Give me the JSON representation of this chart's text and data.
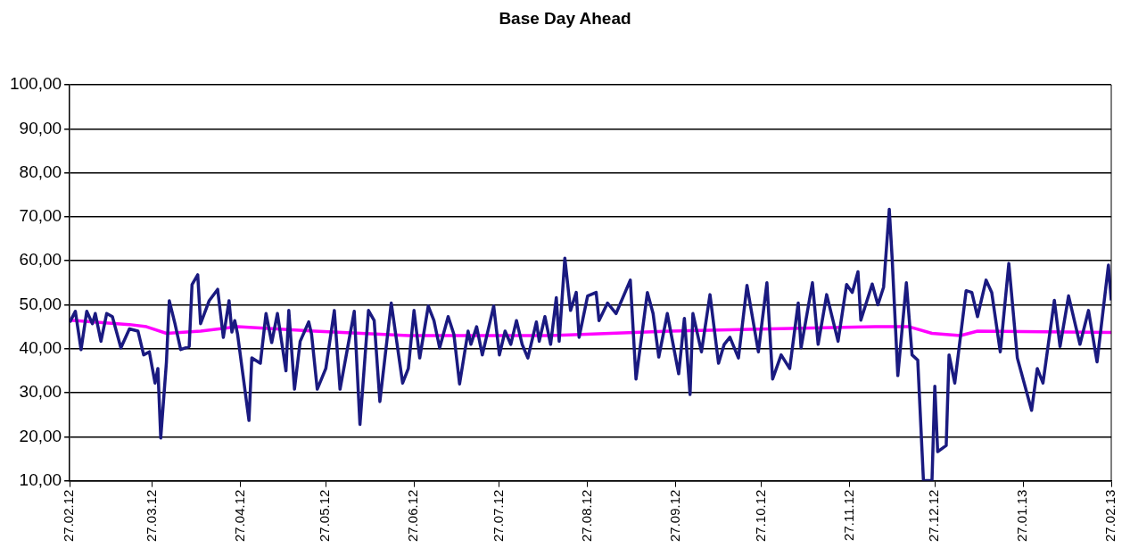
{
  "chart_data": {
    "type": "line",
    "title": "Base Day Ahead",
    "xlim": [
      "2012-02-27",
      "2013-02-27"
    ],
    "xticks": [
      {
        "value": "2012-02-27",
        "label": "27.02.12"
      },
      {
        "value": "2012-03-27",
        "label": "27.03.12"
      },
      {
        "value": "2012-04-27",
        "label": "27.04.12"
      },
      {
        "value": "2012-05-27",
        "label": "27.05.12"
      },
      {
        "value": "2012-06-27",
        "label": "27.06.12"
      },
      {
        "value": "2012-07-27",
        "label": "27.07.12"
      },
      {
        "value": "2012-08-27",
        "label": "27.08.12"
      },
      {
        "value": "2012-09-27",
        "label": "27.09.12"
      },
      {
        "value": "2012-10-27",
        "label": "27.10.12"
      },
      {
        "value": "2012-11-27",
        "label": "27.11.12"
      },
      {
        "value": "2012-12-27",
        "label": "27.12.12"
      },
      {
        "value": "2013-01-27",
        "label": "27.01.13"
      },
      {
        "value": "2013-02-27",
        "label": "27.02.13"
      }
    ],
    "ylim": [
      10,
      100
    ],
    "yticks": [
      {
        "value": 10,
        "label": "10,00"
      },
      {
        "value": 20,
        "label": "20,00"
      },
      {
        "value": 30,
        "label": "30,00"
      },
      {
        "value": 40,
        "label": "40,00"
      },
      {
        "value": 50,
        "label": "50,00"
      },
      {
        "value": 60,
        "label": "60,00"
      },
      {
        "value": 70,
        "label": "70,00"
      },
      {
        "value": 80,
        "label": "80,00"
      },
      {
        "value": 90,
        "label": "90,00"
      },
      {
        "value": 100,
        "label": "100,00"
      }
    ],
    "grid": "y",
    "legend": false,
    "line_style": "solid",
    "series": [
      {
        "color": "#1a1a80",
        "x": [
          "2012-02-27",
          "2012-02-29",
          "2012-03-02",
          "2012-03-04",
          "2012-03-06",
          "2012-03-07",
          "2012-03-09",
          "2012-03-11",
          "2012-03-13",
          "2012-03-16",
          "2012-03-19",
          "2012-03-22",
          "2012-03-24",
          "2012-03-26",
          "2012-03-28",
          "2012-03-29",
          "2012-03-30",
          "2012-04-01",
          "2012-04-02",
          "2012-04-04",
          "2012-04-06",
          "2012-04-09",
          "2012-04-10",
          "2012-04-12",
          "2012-04-13",
          "2012-04-16",
          "2012-04-19",
          "2012-04-21",
          "2012-04-23",
          "2012-04-24",
          "2012-04-25",
          "2012-04-26",
          "2012-04-30",
          "2012-05-01",
          "2012-05-04",
          "2012-05-06",
          "2012-05-08",
          "2012-05-10",
          "2012-05-13",
          "2012-05-14",
          "2012-05-16",
          "2012-05-18",
          "2012-05-21",
          "2012-05-22",
          "2012-05-24",
          "2012-05-27",
          "2012-05-30",
          "2012-06-01",
          "2012-06-06",
          "2012-06-08",
          "2012-06-11",
          "2012-06-13",
          "2012-06-15",
          "2012-06-19",
          "2012-06-23",
          "2012-06-25",
          "2012-06-27",
          "2012-06-29",
          "2012-07-02",
          "2012-07-04",
          "2012-07-06",
          "2012-07-09",
          "2012-07-11",
          "2012-07-13",
          "2012-07-16",
          "2012-07-17",
          "2012-07-19",
          "2012-07-21",
          "2012-07-25",
          "2012-07-27",
          "2012-07-29",
          "2012-07-31",
          "2012-08-02",
          "2012-08-04",
          "2012-08-06",
          "2012-08-09",
          "2012-08-10",
          "2012-08-12",
          "2012-08-14",
          "2012-08-16",
          "2012-08-17",
          "2012-08-19",
          "2012-08-21",
          "2012-08-23",
          "2012-08-24",
          "2012-08-27",
          "2012-08-30",
          "2012-08-31",
          "2012-09-03",
          "2012-09-06",
          "2012-09-11",
          "2012-09-13",
          "2012-09-17",
          "2012-09-19",
          "2012-09-21",
          "2012-09-24",
          "2012-09-28",
          "2012-09-30",
          "2012-10-02",
          "2012-10-03",
          "2012-10-06",
          "2012-10-09",
          "2012-10-12",
          "2012-10-14",
          "2012-10-16",
          "2012-10-19",
          "2012-10-22",
          "2012-10-26",
          "2012-10-29",
          "2012-10-31",
          "2012-11-03",
          "2012-11-06",
          "2012-11-09",
          "2012-11-10",
          "2012-11-14",
          "2012-11-16",
          "2012-11-19",
          "2012-11-23",
          "2012-11-26",
          "2012-11-28",
          "2012-11-30",
          "2012-12-01",
          "2012-12-05",
          "2012-12-07",
          "2012-12-09",
          "2012-12-11",
          "2012-12-12",
          "2012-12-14",
          "2012-12-17",
          "2012-12-19",
          "2012-12-21",
          "2012-12-23",
          "2012-12-24",
          "2012-12-26",
          "2012-12-27",
          "2012-12-28",
          "2012-12-31",
          "2013-01-01",
          "2013-01-03",
          "2013-01-07",
          "2013-01-09",
          "2013-01-11",
          "2013-01-14",
          "2013-01-16",
          "2013-01-19",
          "2013-01-22",
          "2013-01-25",
          "2013-01-30",
          "2013-02-01",
          "2013-02-03",
          "2013-02-07",
          "2013-02-09",
          "2013-02-12",
          "2013-02-16",
          "2013-02-19",
          "2013-02-22",
          "2013-02-26",
          "2013-02-27"
        ],
        "values": [
          46,
          48.5,
          39.8,
          48.5,
          45.7,
          48,
          41.7,
          48,
          47.3,
          40.2,
          44.5,
          44,
          38.6,
          39.3,
          32.2,
          35.5,
          19.7,
          37,
          50.9,
          45.7,
          39.8,
          40.5,
          54.6,
          56.8,
          45.7,
          50.9,
          53.5,
          42.6,
          50.9,
          43.8,
          46.4,
          43.3,
          23.7,
          37.9,
          36.7,
          48,
          41.4,
          48,
          35,
          48.7,
          30.8,
          41.7,
          46.1,
          43.3,
          30.8,
          35.5,
          48.7,
          30.8,
          48.5,
          22.8,
          48.7,
          46.4,
          28,
          50.4,
          32.2,
          35.5,
          48.7,
          37.9,
          49.7,
          46.4,
          40.2,
          47.3,
          43.3,
          32,
          44,
          41,
          45,
          38.6,
          49.7,
          38.6,
          44,
          41,
          46.4,
          41,
          37.9,
          46.1,
          41.7,
          47.3,
          41,
          51.6,
          41.7,
          60.6,
          48.7,
          52.8,
          42.6,
          52,
          52.8,
          46.4,
          50.4,
          48,
          55.6,
          33.1,
          52.8,
          48,
          38.1,
          48,
          34.3,
          46.9,
          29.6,
          48,
          39.3,
          52.3,
          36.7,
          41,
          42.6,
          37.9,
          54.4,
          39.3,
          55,
          33.1,
          38.6,
          35.5,
          50.4,
          40.2,
          55,
          41,
          52.3,
          41.7,
          54.6,
          52.8,
          57.5,
          46.5,
          54.7,
          50,
          54,
          71.7,
          60.6,
          33.9,
          55,
          38.6,
          37.4,
          10,
          10,
          10,
          31.5,
          16.6,
          18,
          38.6,
          32.2,
          53.2,
          52.8,
          47.3,
          55.6,
          52.8,
          39.3,
          59.4,
          37.9,
          26,
          35.5,
          32.2,
          51,
          40.5,
          52,
          41,
          48.7,
          37,
          59,
          51
        ]
      },
      {
        "color": "#ff00ff",
        "x": [
          "2012-02-27",
          "2012-03-19",
          "2012-03-25",
          "2012-04-01",
          "2012-04-13",
          "2012-04-26",
          "2012-05-23",
          "2012-06-25",
          "2012-08-14",
          "2012-09-25",
          "2012-10-30",
          "2012-12-06",
          "2012-12-18",
          "2012-12-26",
          "2013-01-05",
          "2013-01-11",
          "2013-02-27"
        ],
        "values": [
          46.5,
          45.5,
          45,
          43.5,
          44,
          45,
          44,
          43,
          43,
          44,
          44.5,
          45,
          45,
          43.5,
          43,
          44,
          43.7
        ]
      }
    ]
  }
}
